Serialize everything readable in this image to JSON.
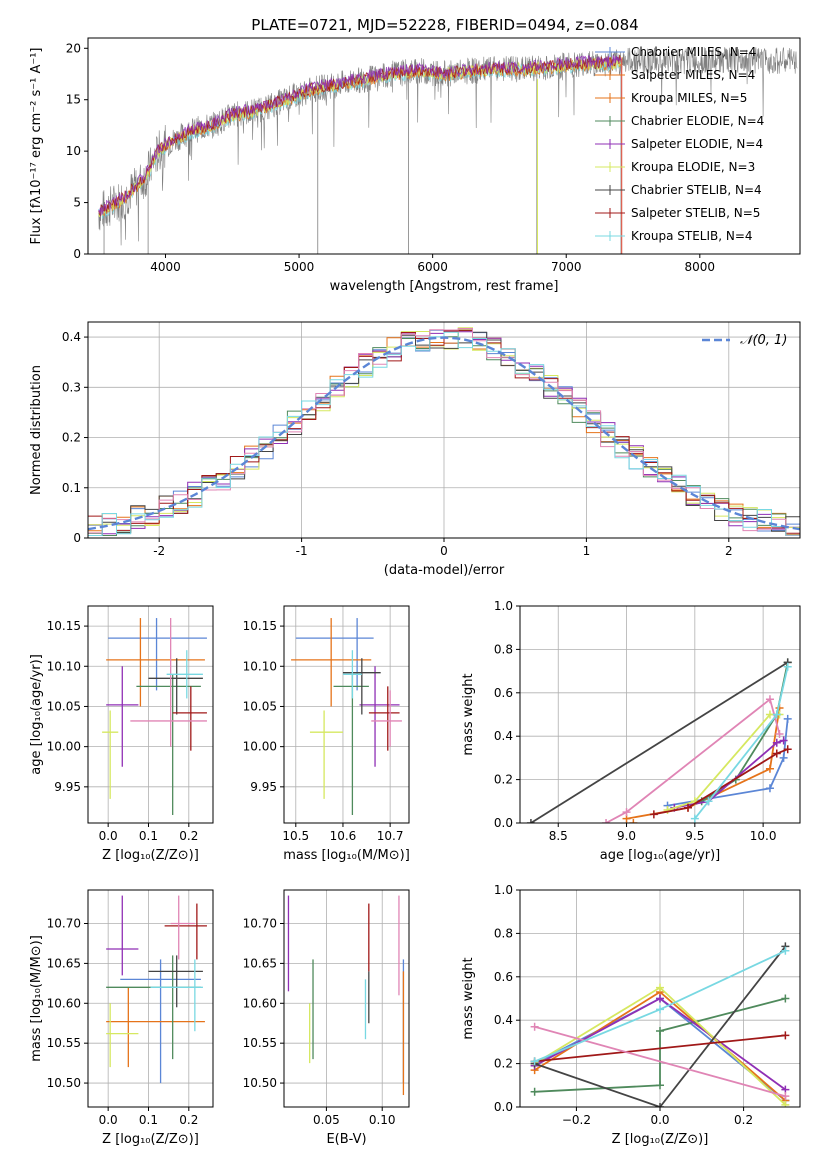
{
  "figure_title": "PLATE=0721, MJD=52228, FIBERID=0494, z=0.084",
  "colors": {
    "blue": "#5b86d6",
    "orange": "#e5731a",
    "green": "#4f8a5c",
    "purple": "#8f2fb5",
    "lime": "#d6e860",
    "dark": "#444444",
    "red": "#a01818",
    "pink": "#e085b5",
    "cyan": "#78d8e2",
    "gray": "#808080",
    "dashed": "#5b86d6"
  },
  "chart_data": [
    {
      "id": "spectrum",
      "type": "line",
      "title": "PLATE=0721, MJD=52228, FIBERID=0494, z=0.084",
      "xlabel": "wavelength [Angstrom, rest frame]",
      "ylabel": "Flux [fλ10⁻¹⁷ erg cm⁻² s⁻¹ A⁻¹]",
      "xlim": [
        3420,
        8750
      ],
      "ylim": [
        0,
        21
      ],
      "xticks": [
        4000,
        5000,
        6000,
        7000,
        8000
      ],
      "yticks": [
        0,
        5,
        10,
        15,
        20
      ],
      "grid": false,
      "legend_position": "right",
      "legend": [
        "Chabrier MILES, N_SSP=4",
        "Salpeter MILES, N_SSP=4",
        "Kroupa MILES, N_SSP=5",
        "Chabrier ELODIE, N_SSP=4",
        "Salpeter ELODIE, N_SSP=4",
        "Kroupa ELODIE, N_SSP=3",
        "Chabrier STELIB, N_SSP=4",
        "Salpeter STELIB, N_SSP=5",
        "Kroupa STELIB, N_SSP=4"
      ],
      "legend_colors": [
        "blue",
        "orange",
        "orange",
        "green",
        "purple",
        "lime",
        "dark",
        "red",
        "cyan"
      ],
      "continuum": [
        [
          3500,
          4.0
        ],
        [
          3700,
          5.5
        ],
        [
          3850,
          7.5
        ],
        [
          3950,
          10.0
        ],
        [
          4050,
          11.0
        ],
        [
          4200,
          12.0
        ],
        [
          4350,
          12.5
        ],
        [
          4500,
          13.5
        ],
        [
          4700,
          14.0
        ],
        [
          4900,
          15.0
        ],
        [
          5100,
          16.0
        ],
        [
          5300,
          16.5
        ],
        [
          5500,
          17.0
        ],
        [
          5700,
          17.5
        ],
        [
          5900,
          17.8
        ],
        [
          6100,
          17.5
        ],
        [
          6300,
          17.8
        ],
        [
          6500,
          18.0
        ],
        [
          6700,
          18.0
        ],
        [
          6900,
          18.2
        ],
        [
          7100,
          18.5
        ],
        [
          7300,
          18.5
        ],
        [
          7420,
          18.7
        ]
      ],
      "spikes_down": [
        3540,
        3870,
        5140,
        5820,
        6780,
        7410
      ]
    },
    {
      "id": "residuals",
      "type": "histogram",
      "xlabel": "(data-model)/error",
      "ylabel": "Normed distribution",
      "xlim": [
        -2.5,
        2.5
      ],
      "ylim": [
        0,
        0.43
      ],
      "xticks": [
        -2,
        -1,
        0,
        1,
        2
      ],
      "yticks": [
        0,
        0.1,
        0.2,
        0.3,
        0.4
      ],
      "grid": true,
      "legend_position": "upper right",
      "legend": [
        "𝒩(0, 1)"
      ],
      "bin_width": 0.1
    },
    {
      "id": "age_vs_z",
      "type": "scatter",
      "xlabel": "Z [log₁₀(Z/Z⊙)]",
      "ylabel": "age  [log₁₀(age/yr)]",
      "xlim": [
        -0.05,
        0.26
      ],
      "ylim": [
        9.905,
        10.175
      ],
      "xticks": [
        0,
        0.1,
        0.2
      ],
      "xtick_labels": [
        "0.0",
        "0.1",
        "0.2"
      ],
      "yticks": [
        9.95,
        10.0,
        10.05,
        10.1,
        10.15
      ],
      "ytick_labels": [
        "9.95",
        "10.00",
        "10.05",
        "10.10",
        "10.15"
      ],
      "grid": true,
      "points": [
        {
          "c": "blue",
          "x": 0.12,
          "y": 10.135,
          "xl": 0.0,
          "xh": 0.245,
          "yl": 10.07,
          "yh": 10.16
        },
        {
          "c": "orange",
          "x": 0.08,
          "y": 10.108,
          "xl": -0.005,
          "xh": 0.24,
          "yl": 10.05,
          "yh": 10.16
        },
        {
          "c": "green",
          "x": 0.16,
          "y": 10.075,
          "xl": 0.07,
          "xh": 0.23,
          "yl": 9.915,
          "yh": 10.09
        },
        {
          "c": "purple",
          "x": 0.035,
          "y": 10.052,
          "xl": -0.005,
          "xh": 0.075,
          "yl": 9.975,
          "yh": 10.1
        },
        {
          "c": "lime",
          "x": 0.005,
          "y": 10.018,
          "xl": -0.015,
          "xh": 0.025,
          "yl": 9.935,
          "yh": 10.045
        },
        {
          "c": "dark",
          "x": 0.17,
          "y": 10.085,
          "xl": 0.1,
          "xh": 0.235,
          "yl": 10.04,
          "yh": 10.11
        },
        {
          "c": "red",
          "x": 0.205,
          "y": 10.042,
          "xl": 0.16,
          "xh": 0.245,
          "yl": 9.995,
          "yh": 10.075
        },
        {
          "c": "pink",
          "x": 0.155,
          "y": 10.032,
          "xl": 0.055,
          "xh": 0.245,
          "yl": 10.0,
          "yh": 10.16
        },
        {
          "c": "cyan",
          "x": 0.195,
          "y": 10.09,
          "xl": 0.145,
          "xh": 0.235,
          "yl": 10.06,
          "yh": 10.12
        }
      ]
    },
    {
      "id": "age_vs_mass",
      "type": "scatter",
      "xlabel": "mass [log₁₀(M/M⊙)]",
      "ylabel": "",
      "xlim": [
        10.475,
        10.74
      ],
      "ylim": [
        9.905,
        10.175
      ],
      "xticks": [
        10.5,
        10.6,
        10.7
      ],
      "xtick_labels": [
        "10.5",
        "10.6",
        "10.7"
      ],
      "yticks": [
        9.95,
        10.0,
        10.05,
        10.1,
        10.15
      ],
      "ytick_labels": [
        "9.95",
        "10.00",
        "10.05",
        "10.10",
        "10.15"
      ],
      "grid": true,
      "points": [
        {
          "c": "blue",
          "x": 10.63,
          "y": 10.135,
          "xl": 10.5,
          "xh": 10.665,
          "yl": 10.07,
          "yh": 10.16
        },
        {
          "c": "orange",
          "x": 10.575,
          "y": 10.108,
          "xl": 10.49,
          "xh": 10.66,
          "yl": 10.05,
          "yh": 10.16
        },
        {
          "c": "green",
          "x": 10.62,
          "y": 10.075,
          "xl": 10.58,
          "xh": 10.655,
          "yl": 9.915,
          "yh": 10.09
        },
        {
          "c": "purple",
          "x": 10.668,
          "y": 10.052,
          "xl": 10.635,
          "xh": 10.72,
          "yl": 9.975,
          "yh": 10.1
        },
        {
          "c": "lime",
          "x": 10.56,
          "y": 10.018,
          "xl": 10.53,
          "xh": 10.6,
          "yl": 9.935,
          "yh": 10.045
        },
        {
          "c": "dark",
          "x": 10.64,
          "y": 10.092,
          "xl": 10.6,
          "xh": 10.68,
          "yl": 10.04,
          "yh": 10.11
        },
        {
          "c": "red",
          "x": 10.695,
          "y": 10.042,
          "xl": 10.655,
          "xh": 10.72,
          "yl": 9.995,
          "yh": 10.075
        },
        {
          "c": "pink",
          "x": 10.7,
          "y": 10.032,
          "xl": 10.66,
          "xh": 10.725,
          "yl": 10.0,
          "yh": 10.07
        },
        {
          "c": "cyan",
          "x": 10.62,
          "y": 10.09,
          "xl": 10.6,
          "xh": 10.64,
          "yl": 10.06,
          "yh": 10.12
        }
      ]
    },
    {
      "id": "weight_vs_age",
      "type": "line",
      "xlabel": "age  [log₁₀(age/yr)]",
      "ylabel": "mass weight",
      "xlim": [
        8.22,
        10.27
      ],
      "ylim": [
        0,
        1
      ],
      "xticks": [
        8.5,
        9.0,
        9.5,
        10.0
      ],
      "xtick_labels": [
        "8.5",
        "9.0",
        "9.5",
        "10.0"
      ],
      "yticks": [
        0,
        0.2,
        0.4,
        0.6,
        0.8,
        1.0
      ],
      "ytick_labels": [
        "0.0",
        "0.2",
        "0.4",
        "0.6",
        "0.8",
        "1.0"
      ],
      "grid": true,
      "series": [
        {
          "c": "blue",
          "x": [
            9.3,
            10.05,
            10.15,
            10.18
          ],
          "y": [
            0.08,
            0.16,
            0.3,
            0.48
          ]
        },
        {
          "c": "orange",
          "x": 9.05,
          "y": 0
        },
        {
          "c": "orange2",
          "c2": "orange",
          "x": [
            9.0,
            9.45,
            10.05,
            10.12
          ],
          "y": [
            0.02,
            0.07,
            0.25,
            0.53
          ]
        },
        {
          "c": "green",
          "x": [
            9.55,
            9.8,
            10.1,
            10.18
          ],
          "y": [
            0.1,
            0.2,
            0.5,
            0.74
          ]
        },
        {
          "c": "purple",
          "x": [
            9.35,
            9.6,
            10.1,
            10.15
          ],
          "y": [
            0.07,
            0.1,
            0.37,
            0.38
          ]
        },
        {
          "c": "lime",
          "x": [
            9.3,
            9.5,
            10.05,
            10.12
          ],
          "y": [
            0.06,
            0.1,
            0.5,
            0.5
          ]
        },
        {
          "c": "dark",
          "x": [
            8.3,
            10.18
          ],
          "y": [
            0.0,
            0.74
          ]
        },
        {
          "c": "red",
          "x": [
            9.2,
            9.45,
            10.1,
            10.18
          ],
          "y": [
            0.04,
            0.07,
            0.32,
            0.34
          ]
        },
        {
          "c": "pink",
          "x": [
            8.85,
            9.0,
            10.05,
            10.12
          ],
          "y": [
            0.0,
            0.05,
            0.57,
            0.41
          ]
        },
        {
          "c": "cyan",
          "x": [
            9.5,
            9.6,
            10.1,
            10.18
          ],
          "y": [
            0.02,
            0.1,
            0.5,
            0.72
          ]
        }
      ]
    },
    {
      "id": "mass_vs_z",
      "type": "scatter",
      "xlabel": "Z [log₁₀(Z/Z⊙)]",
      "ylabel": "mass [log₁₀(M/M⊙)]",
      "xlim": [
        -0.05,
        0.26
      ],
      "ylim": [
        10.47,
        10.742
      ],
      "xticks": [
        0,
        0.1,
        0.2
      ],
      "xtick_labels": [
        "0.0",
        "0.1",
        "0.2"
      ],
      "yticks": [
        10.5,
        10.55,
        10.6,
        10.65,
        10.7
      ],
      "ytick_labels": [
        "10.50",
        "10.55",
        "10.60",
        "10.65",
        "10.70"
      ],
      "grid": true,
      "points": [
        {
          "c": "blue",
          "x": 0.13,
          "y": 10.63,
          "xl": 0.03,
          "xh": 0.23,
          "yl": 10.5,
          "yh": 10.655
        },
        {
          "c": "orange",
          "x": 0.05,
          "y": 10.577,
          "xl": -0.005,
          "xh": 0.24,
          "yl": 10.52,
          "yh": 10.62
        },
        {
          "c": "green",
          "x": 0.16,
          "y": 10.62,
          "xl": -0.005,
          "xh": 0.23,
          "yl": 10.53,
          "yh": 10.66
        },
        {
          "c": "purple",
          "x": 0.035,
          "y": 10.668,
          "xl": -0.005,
          "xh": 0.075,
          "yl": 10.635,
          "yh": 10.735
        },
        {
          "c": "lime",
          "x": 0.005,
          "y": 10.562,
          "xl": -0.005,
          "xh": 0.075,
          "yl": 10.52,
          "yh": 10.6
        },
        {
          "c": "dark",
          "x": 0.17,
          "y": 10.64,
          "xl": 0.1,
          "xh": 0.235,
          "yl": 10.595,
          "yh": 10.66
        },
        {
          "c": "red",
          "x": 0.22,
          "y": 10.697,
          "xl": 0.14,
          "xh": 0.245,
          "yl": 10.655,
          "yh": 10.725
        },
        {
          "c": "pink",
          "x": 0.175,
          "y": 10.7,
          "xl": 0.155,
          "xh": 0.215,
          "yl": 10.655,
          "yh": 10.735
        },
        {
          "c": "cyan",
          "x": 0.215,
          "y": 10.62,
          "xl": 0.105,
          "xh": 0.235,
          "yl": 10.565,
          "yh": 10.655
        }
      ]
    },
    {
      "id": "mass_vs_ebv",
      "type": "scatter",
      "xlabel": "E(B-V)",
      "ylabel": "",
      "xlim": [
        0.012,
        0.124
      ],
      "ylim": [
        10.47,
        10.742
      ],
      "xticks": [
        0.05,
        0.1
      ],
      "xtick_labels": [
        "0.05",
        "0.10"
      ],
      "yticks": [
        10.5,
        10.55,
        10.6,
        10.65,
        10.7
      ],
      "ytick_labels": [
        "10.50",
        "10.55",
        "10.60",
        "10.65",
        "10.70"
      ],
      "grid": true,
      "points": [
        {
          "c": "blue",
          "x": 0.119,
          "y": 10.63,
          "yl": 10.5,
          "yh": 10.655
        },
        {
          "c": "orange",
          "x": 0.119,
          "y": 10.577,
          "yl": 10.485,
          "yh": 10.64
        },
        {
          "c": "green",
          "x": 0.038,
          "y": 10.62,
          "yl": 10.53,
          "yh": 10.655
        },
        {
          "c": "purple",
          "x": 0.016,
          "y": 10.668,
          "yl": 10.615,
          "yh": 10.735
        },
        {
          "c": "lime",
          "x": 0.035,
          "y": 10.562,
          "yl": 10.525,
          "yh": 10.6
        },
        {
          "c": "dark",
          "x": 0.088,
          "y": 10.6,
          "yl": 10.575,
          "yh": 10.64
        },
        {
          "c": "red",
          "x": 0.088,
          "y": 10.697,
          "yl": 10.64,
          "yh": 10.725
        },
        {
          "c": "pink",
          "x": 0.115,
          "y": 10.68,
          "yl": 10.61,
          "yh": 10.735
        },
        {
          "c": "cyan",
          "x": 0.085,
          "y": 10.6,
          "yl": 10.555,
          "yh": 10.63
        }
      ]
    },
    {
      "id": "weight_vs_z",
      "type": "line",
      "xlabel": "Z [log₁₀(Z/Z⊙)]",
      "ylabel": "mass weight",
      "xlim": [
        -0.335,
        0.335
      ],
      "ylim": [
        0,
        1
      ],
      "xticks": [
        -0.2,
        0.0,
        0.2
      ],
      "xtick_labels": [
        "−0.2",
        "0.0",
        "0.2"
      ],
      "yticks": [
        0,
        0.2,
        0.4,
        0.6,
        0.8,
        1.0
      ],
      "ytick_labels": [
        "0.0",
        "0.2",
        "0.4",
        "0.6",
        "0.8",
        "1.0"
      ],
      "grid": true,
      "series": [
        {
          "c": "blue",
          "x": [
            -0.3,
            0.0,
            0.3
          ],
          "y": [
            0.2,
            0.5,
            0.03
          ]
        },
        {
          "c": "orange",
          "x": [
            -0.3,
            0.0,
            0.3
          ],
          "y": [
            0.17,
            0.53,
            0.03
          ]
        },
        {
          "c": "green",
          "x": [
            -0.3,
            0.0,
            0.0,
            0.3
          ],
          "y": [
            0.07,
            0.1,
            0.35,
            0.5
          ]
        },
        {
          "c": "purple",
          "x": [
            -0.3,
            0.0,
            0.3
          ],
          "y": [
            0.19,
            0.5,
            0.08
          ]
        },
        {
          "c": "lime",
          "x": [
            -0.3,
            0.0,
            0.3
          ],
          "y": [
            0.2,
            0.55,
            0.01
          ]
        },
        {
          "c": "dark",
          "x": [
            -0.3,
            0.0,
            0.3
          ],
          "y": [
            0.2,
            0.0,
            0.74
          ]
        },
        {
          "c": "red",
          "x": [
            -0.3,
            0.3
          ],
          "y": [
            0.21,
            0.33
          ]
        },
        {
          "c": "pink",
          "x": [
            -0.3,
            0.3
          ],
          "y": [
            0.37,
            0.05
          ]
        },
        {
          "c": "cyan",
          "x": [
            -0.3,
            0.0,
            0.3
          ],
          "y": [
            0.21,
            0.45,
            0.72
          ]
        }
      ]
    }
  ]
}
